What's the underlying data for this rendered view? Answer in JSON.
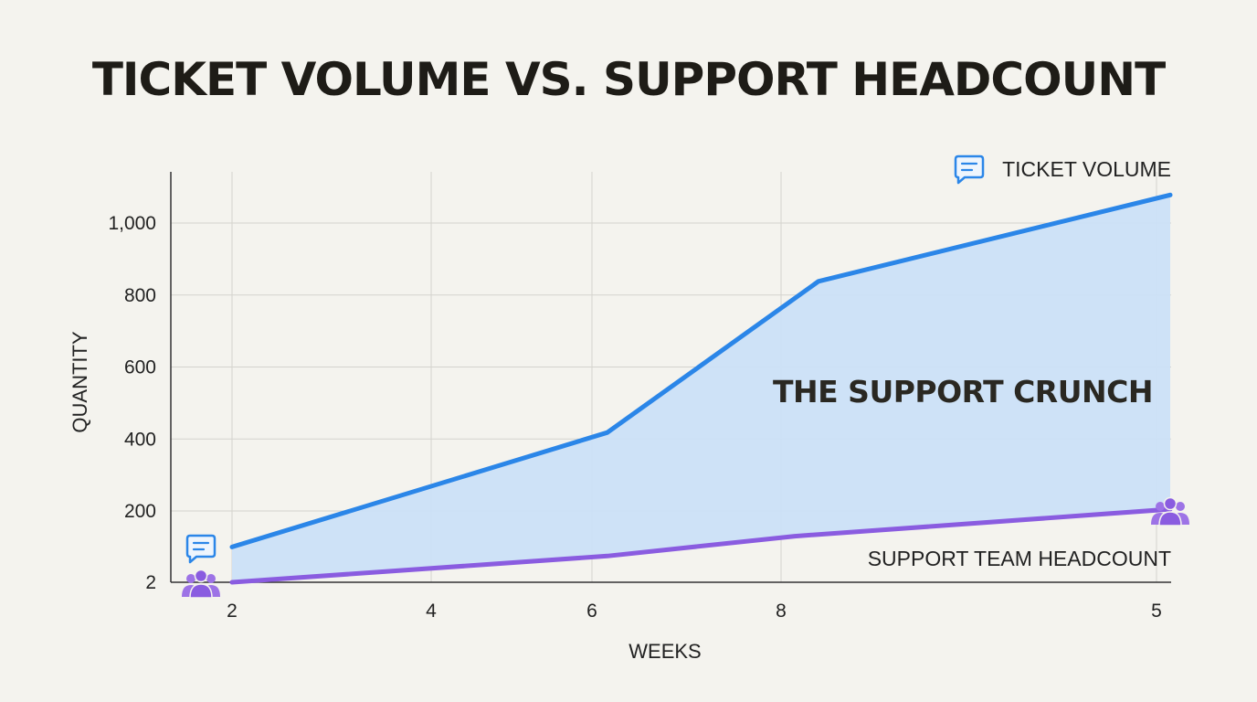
{
  "chart_data": {
    "type": "area",
    "title": "TICKET VOLUME VS. SUPPORT HEADCOUNT",
    "xlabel": "WEEKS",
    "ylabel": "QUANTITY",
    "x_tick_labels": [
      "2",
      "4",
      "6",
      "8",
      "5"
    ],
    "y_tick_labels": [
      "2",
      "200",
      "400",
      "600",
      "800",
      "1,000"
    ],
    "y_ticks": [
      2,
      200,
      400,
      600,
      800,
      1000
    ],
    "ylim": [
      2,
      1150
    ],
    "grid": true,
    "series": [
      {
        "name": "TICKET VOLUME",
        "color": "#2b86e8",
        "fill": "#cbe0f7",
        "icon": "chat-bubble-icon",
        "points": [
          {
            "x": 2,
            "y": 100
          },
          {
            "x": 6,
            "y": 418
          },
          {
            "x": 8.25,
            "y": 838
          },
          {
            "x": 12,
            "y": 1078
          }
        ]
      },
      {
        "name": "SUPPORT TEAM HEADCOUNT",
        "color": "#8a5ce0",
        "icon": "people-icon",
        "points": [
          {
            "x": 2,
            "y": 2
          },
          {
            "x": 6,
            "y": 75
          },
          {
            "x": 8,
            "y": 130
          },
          {
            "x": 12,
            "y": 205
          }
        ]
      }
    ],
    "annotations": [
      {
        "text": "THE SUPPORT CRUNCH"
      }
    ]
  }
}
